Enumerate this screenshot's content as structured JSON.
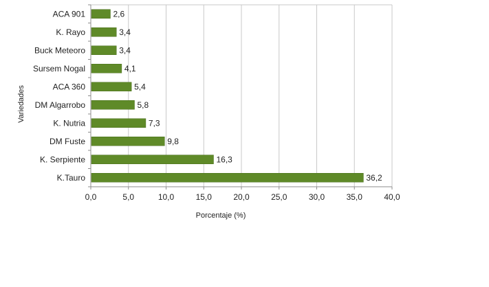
{
  "chart_data": {
    "type": "bar",
    "orientation": "horizontal",
    "categories": [
      "ACA 901",
      "K. Rayo",
      "Buck Meteoro",
      "Sursem Nogal",
      "ACA 360",
      "DM Algarrobo",
      "K. Nutria",
      "DM Fuste",
      "K. Serpiente",
      "K.Tauro"
    ],
    "values": [
      2.6,
      3.4,
      3.4,
      4.1,
      5.4,
      5.8,
      7.3,
      9.8,
      16.3,
      36.2
    ],
    "data_labels": [
      "2,6",
      "3,4",
      "3,4",
      "4,1",
      "5,4",
      "5,8",
      "7,3",
      "9,8",
      "16,3",
      "36,2"
    ],
    "xlabel": "Porcentaje (%)",
    "ylabel": "Variedades",
    "xlim": [
      0,
      40
    ],
    "x_ticks": [
      0,
      5,
      10,
      15,
      20,
      25,
      30,
      35,
      40
    ],
    "x_tick_labels": [
      "0,0",
      "5,0",
      "10,0",
      "15,0",
      "20,0",
      "25,0",
      "30,0",
      "35,0",
      "40,0"
    ],
    "grid": "vertical",
    "legend": "none",
    "colors": {
      "bar": "#5f8a28",
      "bar_stroke": "#4a6e1d",
      "grid": "#c8c8c8",
      "axis": "#8c8c8c",
      "text": "#222222"
    }
  }
}
